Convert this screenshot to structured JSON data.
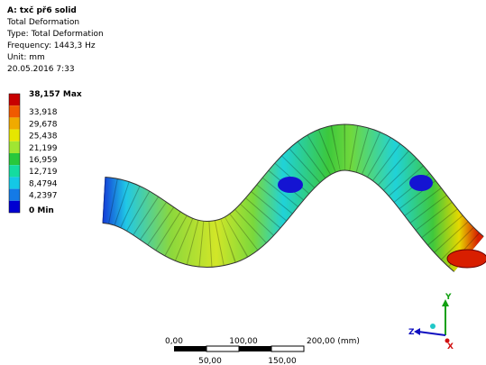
{
  "header": {
    "title": "A: txč př6 solid",
    "lines": [
      "Total Deformation",
      "Type: Total Deformation",
      "Frequency: 1443,3 Hz",
      "Unit: mm",
      "20.05.2016 7:33"
    ]
  },
  "legend": [
    {
      "text": "38,157 Max",
      "color": "#c80000"
    },
    {
      "text": "33,918",
      "color": "#f05a00"
    },
    {
      "text": "29,678",
      "color": "#f0aa00"
    },
    {
      "text": "25,438",
      "color": "#e6e600"
    },
    {
      "text": "21,199",
      "color": "#a0e632"
    },
    {
      "text": "16,959",
      "color": "#28c83c"
    },
    {
      "text": "12,719",
      "color": "#14dca0"
    },
    {
      "text": "8,4794",
      "color": "#14c8e6"
    },
    {
      "text": "4,2397",
      "color": "#147ae6"
    },
    {
      "text": "0 Min",
      "color": "#0000d2"
    }
  ],
  "scale_bar": {
    "top": [
      "0,00",
      "100,00",
      "200,00 (mm)"
    ],
    "bottom": [
      "50,00",
      "150,00"
    ]
  },
  "triad": {
    "y": "Y",
    "z": "Z",
    "x": "X"
  }
}
